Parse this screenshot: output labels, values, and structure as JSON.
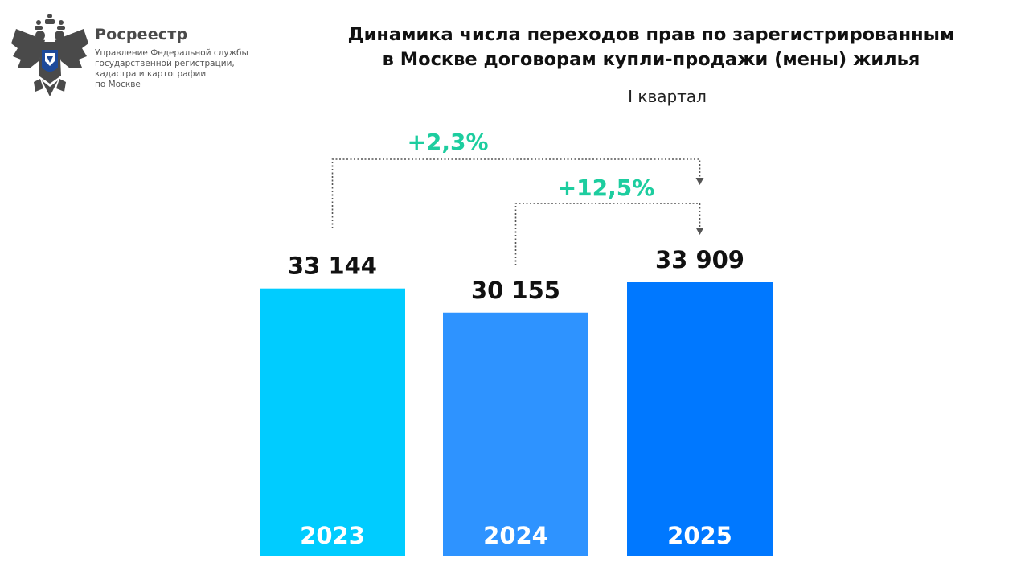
{
  "organization": {
    "name": "Росреестр",
    "description": [
      "Управление Федеральной службы",
      "государственной регистрации,",
      "кадастра и картографии",
      "по Москве"
    ]
  },
  "title_lines": [
    "Динамика числа переходов прав по зарегистрированным",
    "в Москве договорам купли-продажи (мены) жилья"
  ],
  "subtitle": "I квартал",
  "chart_data": {
    "type": "bar",
    "categories": [
      "2023",
      "2024",
      "2025"
    ],
    "values": [
      33144,
      30155,
      33909
    ],
    "value_labels": [
      "33 144",
      "30 155",
      "33 909"
    ],
    "bar_colors": [
      "#00CCFF",
      "#2E93FF",
      "#0078FF"
    ],
    "ylim": [
      0,
      33909
    ],
    "changes": [
      {
        "from": "2023",
        "to": "2025",
        "label": "+2,3%"
      },
      {
        "from": "2024",
        "to": "2025",
        "label": "+12,5%"
      }
    ],
    "change_color": "#1DCD9F",
    "grid": false
  }
}
